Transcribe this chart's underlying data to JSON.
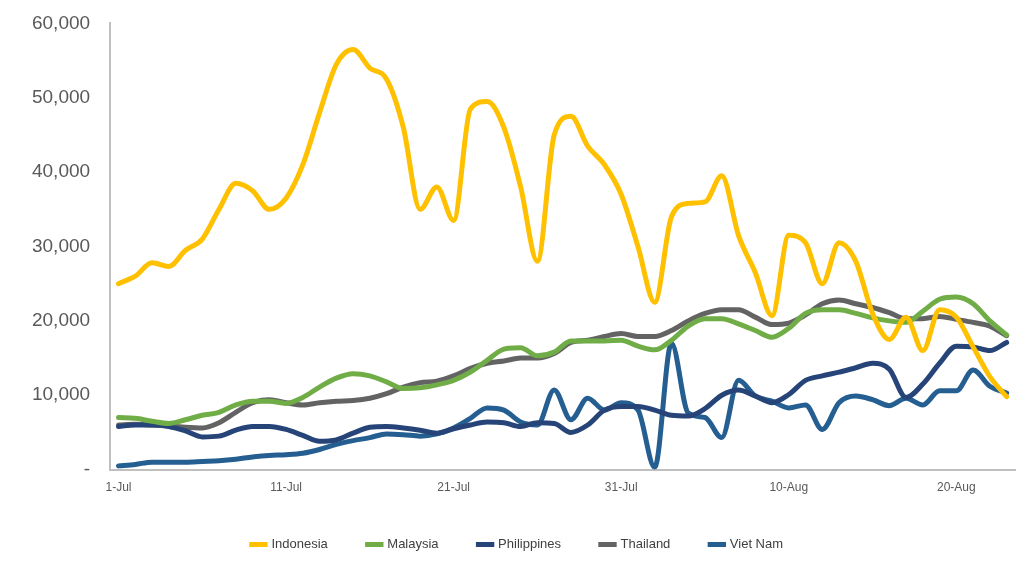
{
  "chart_data": {
    "type": "line",
    "categories": [
      "1-Jul",
      null,
      null,
      null,
      null,
      null,
      null,
      null,
      null,
      null,
      "11-Jul",
      null,
      null,
      null,
      null,
      null,
      null,
      null,
      null,
      null,
      "21-Jul",
      null,
      null,
      null,
      null,
      null,
      null,
      null,
      null,
      null,
      "31-Jul",
      null,
      null,
      null,
      null,
      null,
      null,
      null,
      null,
      null,
      "10-Aug",
      null,
      null,
      null,
      null,
      null,
      null,
      null,
      null,
      null,
      "20-Aug",
      null,
      null,
      null
    ],
    "series": [
      {
        "name": "Indonesia",
        "color": "#ffc000",
        "values": [
          25000,
          26000,
          27800,
          27300,
          29500,
          31000,
          35000,
          38500,
          37500,
          35000,
          36500,
          41000,
          48000,
          54500,
          56500,
          54000,
          52500,
          46000,
          35000,
          38000,
          33500,
          48500,
          49500,
          46000,
          38000,
          28000,
          45000,
          47500,
          43500,
          41000,
          37000,
          30000,
          22500,
          34000,
          35800,
          36000,
          39500,
          31500,
          26500,
          20700,
          31500,
          30500,
          25000,
          30500,
          28000,
          21000,
          17500,
          20500,
          16000,
          21500,
          20500,
          16500,
          12500,
          9800
        ]
      },
      {
        "name": "Malaysia",
        "color": "#70ad47",
        "values": [
          7000,
          6900,
          6500,
          6200,
          6700,
          7300,
          7700,
          8700,
          9200,
          9200,
          8900,
          9700,
          11100,
          12300,
          12900,
          12600,
          11800,
          10900,
          11000,
          11400,
          12000,
          13100,
          14700,
          16200,
          16400,
          15300,
          15800,
          17300,
          17300,
          17300,
          17400,
          16600,
          16100,
          17400,
          19300,
          20300,
          20300,
          19600,
          18700,
          17800,
          19000,
          21000,
          21500,
          21500,
          21000,
          20400,
          20000,
          19800,
          21300,
          22900,
          23200,
          22300,
          20000,
          18100
        ]
      },
      {
        "name": "Philippines",
        "color": "#264478",
        "values": [
          5800,
          6000,
          6000,
          5800,
          5200,
          4400,
          4500,
          5300,
          5800,
          5800,
          5400,
          4600,
          3800,
          4000,
          4900,
          5700,
          5800,
          5600,
          5300,
          4900,
          5500,
          6000,
          6400,
          6300,
          5800,
          6300,
          6200,
          5000,
          6000,
          8000,
          8500,
          8500,
          8000,
          7300,
          7200,
          8200,
          10000,
          10700,
          9900,
          9000,
          10100,
          12000,
          12600,
          13100,
          13700,
          14300,
          13500,
          9700,
          11500,
          14300,
          16600,
          16500,
          16000,
          17100
        ]
      },
      {
        "name": "Thailand",
        "color": "#636363",
        "values": [
          6000,
          6100,
          6000,
          5900,
          5700,
          5600,
          6300,
          7700,
          9000,
          9400,
          9000,
          8700,
          9000,
          9200,
          9300,
          9600,
          10200,
          11100,
          11700,
          11900,
          12600,
          13600,
          14300,
          14600,
          15000,
          15000,
          15600,
          17100,
          17400,
          17900,
          18300,
          17900,
          17900,
          18700,
          20000,
          21000,
          21500,
          21500,
          20500,
          19500,
          19700,
          20800,
          22300,
          22800,
          22300,
          21800,
          21100,
          20300,
          20300,
          20600,
          20200,
          19800,
          19300,
          18000
        ]
      },
      {
        "name": "Viet Nam",
        "color": "#255e91",
        "values": [
          500,
          700,
          1000,
          1000,
          1000,
          1100,
          1200,
          1400,
          1700,
          1900,
          2000,
          2200,
          2700,
          3400,
          3900,
          4300,
          4800,
          4700,
          4500,
          4800,
          5600,
          6900,
          8300,
          8000,
          6400,
          6000,
          10700,
          6700,
          9600,
          8000,
          9000,
          8000,
          300,
          17000,
          7600,
          7000,
          4300,
          12000,
          9900,
          9200,
          8300,
          8700,
          5400,
          9000,
          9900,
          9400,
          8600,
          9600,
          8700,
          10600,
          10600,
          13400,
          11200,
          10300
        ]
      }
    ],
    "ylim": [
      0,
      60000
    ],
    "yticks": [
      {
        "value": 0,
        "label": "-"
      },
      {
        "value": 10000,
        "label": "10,000"
      },
      {
        "value": 20000,
        "label": "20,000"
      },
      {
        "value": 30000,
        "label": "30,000"
      },
      {
        "value": 40000,
        "label": "40,000"
      },
      {
        "value": 50000,
        "label": "50,000"
      },
      {
        "value": 60000,
        "label": "60,000"
      }
    ],
    "legend": "bottom",
    "marker": "none",
    "line_style": "solid"
  }
}
